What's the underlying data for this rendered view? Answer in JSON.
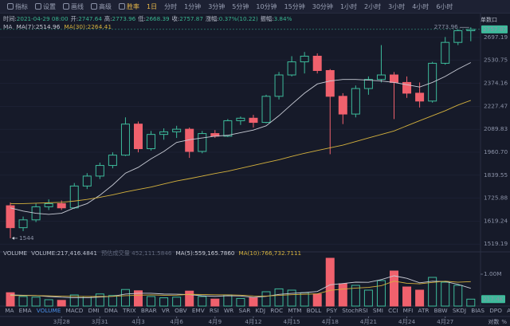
{
  "toolbar": {
    "tools": [
      "指标",
      "设置",
      "画线",
      "高级",
      "胜率"
    ],
    "interval": "1日",
    "intervals": [
      "分时",
      "1分钟",
      "3分钟",
      "5分钟",
      "10分钟",
      "15分钟",
      "30分钟",
      "1小时",
      "2小时",
      "3小时",
      "4小时",
      "6小时"
    ]
  },
  "info": [
    {
      "label": "时间:",
      "value": "2021-04-29 08:00"
    },
    {
      "label": "开:",
      "value": 2747.64
    },
    {
      "label": "高:",
      "value": 2773.96
    },
    {
      "label": "低:",
      "value": 2668.39
    },
    {
      "label": "收:",
      "value": 2757.87
    },
    {
      "label": "涨幅:",
      "value": "0.37%(10.22)"
    },
    {
      "label": "振幅:",
      "value": "3.84%"
    }
  ],
  "axis_head": "单数口",
  "chart_data": [
    {
      "type": "candlestick",
      "legend": "MA",
      "categories": [
        null,
        null,
        null,
        null,
        "3月28",
        null,
        null,
        "3月31",
        null,
        null,
        "4月3",
        null,
        null,
        "4月6",
        null,
        null,
        "4月9",
        null,
        null,
        "4月12",
        null,
        null,
        "4月15",
        null,
        null,
        "4月18",
        null,
        null,
        "4月21",
        null,
        null,
        "4月24",
        null,
        null,
        "4月27",
        null,
        null
      ],
      "open": [
        1690,
        1590,
        1625,
        1685,
        1700,
        1680,
        1785,
        1835,
        1890,
        1945,
        2120,
        1980,
        2060,
        2075,
        2090,
        1965,
        2065,
        2050,
        2140,
        2155,
        2130,
        2290,
        2430,
        2520,
        2560,
        2460,
        2290,
        2180,
        2340,
        2400,
        2430,
        2380,
        2310,
        2260,
        2510,
        2660,
        2747.64
      ],
      "high": [
        1705,
        1640,
        1700,
        1720,
        1715,
        1800,
        1850,
        1905,
        1960,
        2160,
        2135,
        2080,
        2095,
        2110,
        2100,
        2080,
        2085,
        2150,
        2165,
        2175,
        2300,
        2450,
        2560,
        2590,
        2580,
        2470,
        2310,
        2360,
        2420,
        2640,
        2450,
        2420,
        2380,
        2520,
        2700,
        2760,
        2773.96
      ],
      "low": [
        1544,
        1575,
        1615,
        1670,
        1670,
        1675,
        1770,
        1820,
        1875,
        1940,
        1960,
        1970,
        2030,
        2040,
        1930,
        1955,
        2040,
        2045,
        2115,
        2100,
        2125,
        2270,
        2420,
        2440,
        2440,
        1950,
        2120,
        2160,
        2300,
        2380,
        2150,
        2280,
        2220,
        2250,
        2500,
        2640,
        2668.39
      ],
      "close": [
        1590,
        1625,
        1685,
        1700,
        1680,
        1785,
        1835,
        1890,
        1945,
        2120,
        1980,
        2060,
        2075,
        2090,
        1965,
        2065,
        2050,
        2140,
        2155,
        2130,
        2290,
        2430,
        2520,
        2560,
        2460,
        2290,
        2180,
        2340,
        2400,
        2430,
        2380,
        2310,
        2260,
        2510,
        2660,
        2747.64,
        2757.87
      ],
      "up_color": "#3dbb9b",
      "down_color": "#f0616d",
      "series": [
        {
          "name": "MA(7):2514.96",
          "color": "#c9ccd6",
          "values": [
            1680,
            1665,
            1655,
            1650,
            1655,
            1680,
            1700,
            1740,
            1790,
            1850,
            1880,
            1925,
            1965,
            2015,
            2030,
            2040,
            2050,
            2055,
            2070,
            2085,
            2110,
            2170,
            2240,
            2310,
            2370,
            2390,
            2400,
            2400,
            2395,
            2390,
            2380,
            2365,
            2350,
            2380,
            2420,
            2470,
            2514.96
          ]
        },
        {
          "name": "MA(30):2264.41",
          "color": "#d4b13d",
          "values": [
            1700,
            1700,
            1702,
            1704,
            1706,
            1712,
            1720,
            1730,
            1742,
            1756,
            1768,
            1780,
            1795,
            1810,
            1822,
            1835,
            1848,
            1860,
            1875,
            1890,
            1905,
            1920,
            1938,
            1955,
            1970,
            1985,
            2000,
            2020,
            2040,
            2060,
            2080,
            2110,
            2140,
            2170,
            2200,
            2235,
            2264.41
          ]
        }
      ],
      "ylim": [
        1490,
        2800
      ],
      "log_scale": true,
      "grid": true,
      "yticks": [
        2697.19,
        2530.75,
        2374.16,
        2227.47,
        2089.83,
        {
          "value": 1960.7,
          "label": "1960.70"
        },
        1839.55,
        1725.88,
        1619.24,
        1519.19
      ],
      "last_price": 2757.87,
      "annotations": [
        2773.96,
        1544
      ]
    },
    {
      "type": "bar",
      "legend": [
        "VOLUME",
        "VOLUME:217,416.4841",
        "预估成交量 452,111.5846"
      ],
      "values": [
        420000,
        300000,
        280000,
        200000,
        180000,
        350000,
        300000,
        380000,
        330000,
        520000,
        480000,
        300000,
        260000,
        280000,
        470000,
        300000,
        220000,
        350000,
        240000,
        260000,
        450000,
        540000,
        500000,
        420000,
        380000,
        1500000,
        700000,
        650000,
        500000,
        800000,
        1100000,
        600000,
        500000,
        900000,
        750000,
        650000,
        217416.4841
      ],
      "series": [
        {
          "name": "MA(5):559,165.7860",
          "color": "#c9ccd6",
          "values": [
            350000,
            340000,
            330000,
            300000,
            276000,
            262000,
            262000,
            282000,
            308000,
            376000,
            402000,
            402000,
            378000,
            374000,
            362000,
            322000,
            306000,
            324000,
            316000,
            274000,
            304000,
            368000,
            398000,
            422000,
            458000,
            668000,
            708000,
            750000,
            746000,
            830000,
            950000,
            870000,
            730000,
            780000,
            770000,
            680000,
            559165.786
          ]
        },
        {
          "name": "MA(10):766,732.7111",
          "color": "#d4b13d",
          "values": [
            330000,
            330000,
            330000,
            320000,
            310000,
            305000,
            300000,
            300000,
            305000,
            326000,
            340000,
            352000,
            340000,
            341000,
            369000,
            364000,
            354000,
            351000,
            342000,
            318000,
            313000,
            337000,
            358000,
            372000,
            382000,
            493000,
            533000,
            563000,
            585000,
            638000,
            783000,
            715000,
            698000,
            742000,
            780000,
            748000,
            766732.7111
          ]
        }
      ],
      "ylim": [
        0,
        1550000
      ],
      "yticks": [
        {
          "value": 1000000,
          "label": "1.00M"
        }
      ],
      "last_value": {
        "value": 217416.4841,
        "label": "217.4K"
      }
    }
  ],
  "indicators": [
    "MA",
    "EMA",
    "VOLUME",
    "MACD",
    "DMI",
    "DMA",
    "TRIX",
    "BRAR",
    "VR",
    "OBV",
    "EMV",
    "RSI",
    "WR",
    "SAR",
    "KDJ",
    "ROC",
    "MTM",
    "BOLL",
    "PSY",
    "StochRSI",
    "SMI",
    "CCI",
    "MFI",
    "ATR",
    "BBW",
    "SKDJ",
    "BIAS",
    "DPO",
    "AO"
  ],
  "active_indicator": "VOLUME",
  "corner": [
    "对数",
    "%"
  ]
}
